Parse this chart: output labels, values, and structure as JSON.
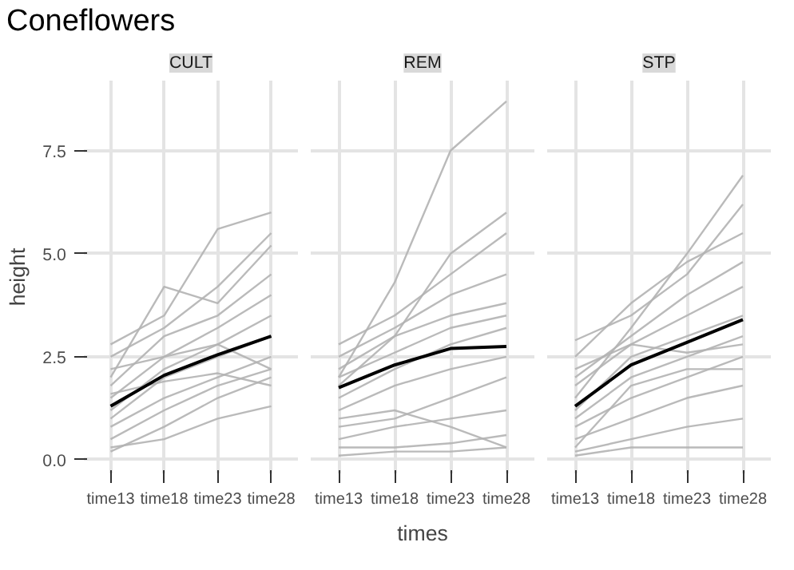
{
  "chart_data": [
    {
      "type": "line",
      "title": "CULT",
      "annotations": [
        "Coneflowers"
      ],
      "ylabel": "height",
      "categories": [
        "time13",
        "time18",
        "time23",
        "time28"
      ],
      "ylim": [
        -0.33,
        9.2
      ],
      "yticks": [
        {
          "value": 0,
          "label": "0.0"
        },
        {
          "value": 2.5,
          "label": "2.5"
        },
        {
          "value": 5,
          "label": "5.0"
        },
        {
          "value": 7.5,
          "label": "7.5"
        }
      ],
      "grid": true,
      "series": [
        {
          "color": "#b3b3b3",
          "values": [
            2.8,
            3.5,
            5.6,
            6.0
          ]
        },
        {
          "color": "#b3b3b3",
          "values": [
            2.5,
            3.2,
            4.2,
            5.5
          ]
        },
        {
          "color": "#b3b3b3",
          "values": [
            2.0,
            4.2,
            3.8,
            5.2
          ]
        },
        {
          "color": "#b3b3b3",
          "values": [
            1.8,
            3.0,
            3.5,
            4.5
          ]
        },
        {
          "color": "#b3b3b3",
          "values": [
            1.5,
            2.5,
            3.2,
            4.0
          ]
        },
        {
          "color": "#b3b3b3",
          "values": [
            1.2,
            2.2,
            2.8,
            3.5
          ]
        },
        {
          "color": "#b3b3b3",
          "values": [
            1.0,
            2.0,
            2.5,
            3.0
          ]
        },
        {
          "color": "#b3b3b3",
          "values": [
            0.8,
            1.5,
            2.0,
            2.5
          ]
        },
        {
          "color": "#b3b3b3",
          "values": [
            0.5,
            1.2,
            1.8,
            2.2
          ]
        },
        {
          "color": "#b3b3b3",
          "values": [
            0.3,
            0.5,
            1.0,
            1.3
          ]
        },
        {
          "color": "#b3b3b3",
          "values": [
            0.2,
            0.8,
            1.5,
            2.0
          ]
        },
        {
          "color": "#b3b3b3",
          "values": [
            2.2,
            2.5,
            2.8,
            2.2
          ]
        },
        {
          "color": "#b3b3b3",
          "values": [
            1.6,
            1.9,
            2.1,
            1.8
          ]
        },
        {
          "color": "#000000",
          "values": [
            1.3,
            2.05,
            2.55,
            3.0
          ]
        }
      ]
    },
    {
      "type": "line",
      "title": "REM",
      "xlabel": "times",
      "tick_labels": "x",
      "categories": [
        "time13",
        "time18",
        "time23",
        "time28"
      ],
      "ylim": [
        -0.33,
        9.2
      ],
      "grid": true,
      "series": [
        {
          "color": "#b3b3b3",
          "values": [
            2.0,
            4.3,
            7.5,
            8.7
          ]
        },
        {
          "color": "#b3b3b3",
          "values": [
            1.8,
            3.0,
            5.0,
            6.0
          ]
        },
        {
          "color": "#b3b3b3",
          "values": [
            2.8,
            3.5,
            4.5,
            5.5
          ]
        },
        {
          "color": "#b3b3b3",
          "values": [
            2.5,
            3.2,
            4.0,
            4.5
          ]
        },
        {
          "color": "#b3b3b3",
          "values": [
            2.2,
            3.0,
            3.5,
            3.8
          ]
        },
        {
          "color": "#b3b3b3",
          "values": [
            1.5,
            2.2,
            2.8,
            3.2
          ]
        },
        {
          "color": "#b3b3b3",
          "values": [
            1.2,
            1.8,
            2.2,
            2.5
          ]
        },
        {
          "color": "#b3b3b3",
          "values": [
            0.8,
            1.0,
            1.5,
            2.0
          ]
        },
        {
          "color": "#b3b3b3",
          "values": [
            0.5,
            0.8,
            1.0,
            1.2
          ]
        },
        {
          "color": "#b3b3b3",
          "values": [
            0.3,
            0.3,
            0.4,
            0.6
          ]
        },
        {
          "color": "#b3b3b3",
          "values": [
            0.1,
            0.2,
            0.2,
            0.3
          ]
        },
        {
          "color": "#b3b3b3",
          "values": [
            1.0,
            1.2,
            0.8,
            0.3
          ]
        },
        {
          "color": "#b3b3b3",
          "values": [
            2.0,
            2.6,
            3.2,
            3.5
          ]
        },
        {
          "color": "#000000",
          "values": [
            1.75,
            2.3,
            2.7,
            2.75
          ]
        }
      ]
    },
    {
      "type": "line",
      "title": "STP",
      "tick_labels": "x",
      "categories": [
        "time13",
        "time18",
        "time23",
        "time28"
      ],
      "ylim": [
        -0.33,
        9.2
      ],
      "grid": true,
      "series": [
        {
          "color": "#b3b3b3",
          "values": [
            1.5,
            3.2,
            5.0,
            6.9
          ]
        },
        {
          "color": "#b3b3b3",
          "values": [
            2.9,
            3.5,
            4.5,
            6.2
          ]
        },
        {
          "color": "#b3b3b3",
          "values": [
            2.5,
            3.8,
            4.8,
            5.5
          ]
        },
        {
          "color": "#b3b3b3",
          "values": [
            2.0,
            3.0,
            4.0,
            4.8
          ]
        },
        {
          "color": "#b3b3b3",
          "values": [
            1.8,
            2.8,
            3.5,
            4.2
          ]
        },
        {
          "color": "#b3b3b3",
          "values": [
            1.2,
            2.5,
            3.0,
            3.5
          ]
        },
        {
          "color": "#b3b3b3",
          "values": [
            1.0,
            2.0,
            2.5,
            3.0
          ]
        },
        {
          "color": "#b3b3b3",
          "values": [
            0.8,
            1.5,
            2.0,
            2.5
          ]
        },
        {
          "color": "#b3b3b3",
          "values": [
            0.5,
            1.0,
            1.5,
            1.8
          ]
        },
        {
          "color": "#b3b3b3",
          "values": [
            0.2,
            0.5,
            0.8,
            1.0
          ]
        },
        {
          "color": "#b3b3b3",
          "values": [
            0.1,
            0.3,
            0.3,
            0.3
          ]
        },
        {
          "color": "#b3b3b3",
          "values": [
            2.2,
            2.8,
            2.6,
            2.8
          ]
        },
        {
          "color": "#b3b3b3",
          "values": [
            0.3,
            1.8,
            2.2,
            2.2
          ]
        },
        {
          "color": "#000000",
          "values": [
            1.3,
            2.3,
            2.85,
            3.4
          ]
        }
      ]
    }
  ]
}
